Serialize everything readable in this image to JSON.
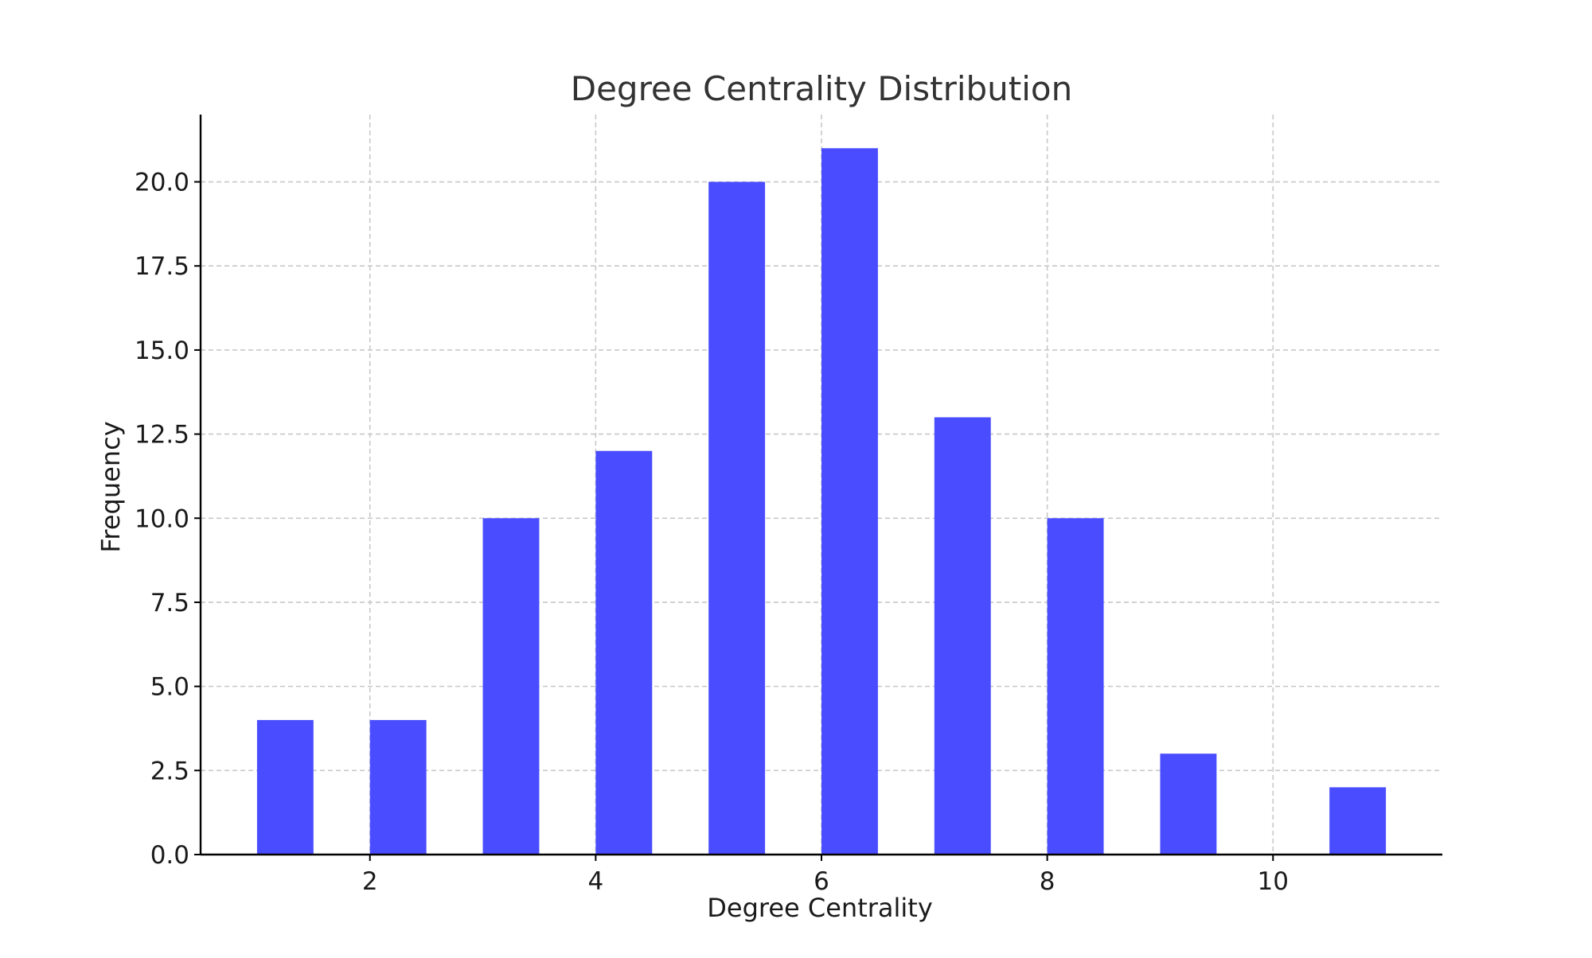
{
  "chart_data": {
    "type": "bar",
    "title": "Degree Centrality Distribution",
    "xlabel": "Degree Centrality",
    "ylabel": "Frequency",
    "x": [
      1.25,
      2.25,
      3.25,
      4.25,
      5.25,
      6.25,
      7.25,
      8.25,
      9.25,
      10.75
    ],
    "bin_width": 0.5,
    "values": [
      4,
      4,
      10,
      12,
      20,
      21,
      13,
      10,
      3,
      2
    ],
    "xlim": [
      0.5,
      11.5
    ],
    "ylim": [
      0,
      22
    ],
    "xticks": [
      2,
      4,
      6,
      8,
      10
    ],
    "xtick_labels": [
      "2",
      "4",
      "6",
      "8",
      "10"
    ],
    "yticks": [
      0,
      2.5,
      5,
      7.5,
      10,
      12.5,
      15,
      17.5,
      20
    ],
    "ytick_labels": [
      "0.0",
      "2.5",
      "5.0",
      "7.5",
      "10.0",
      "12.5",
      "15.0",
      "17.5",
      "20.0"
    ],
    "grid": true,
    "bar_color": "#4a4dff",
    "grid_color": "#c8c8c8",
    "axis_color": "#000000",
    "text_color": "#333333"
  }
}
